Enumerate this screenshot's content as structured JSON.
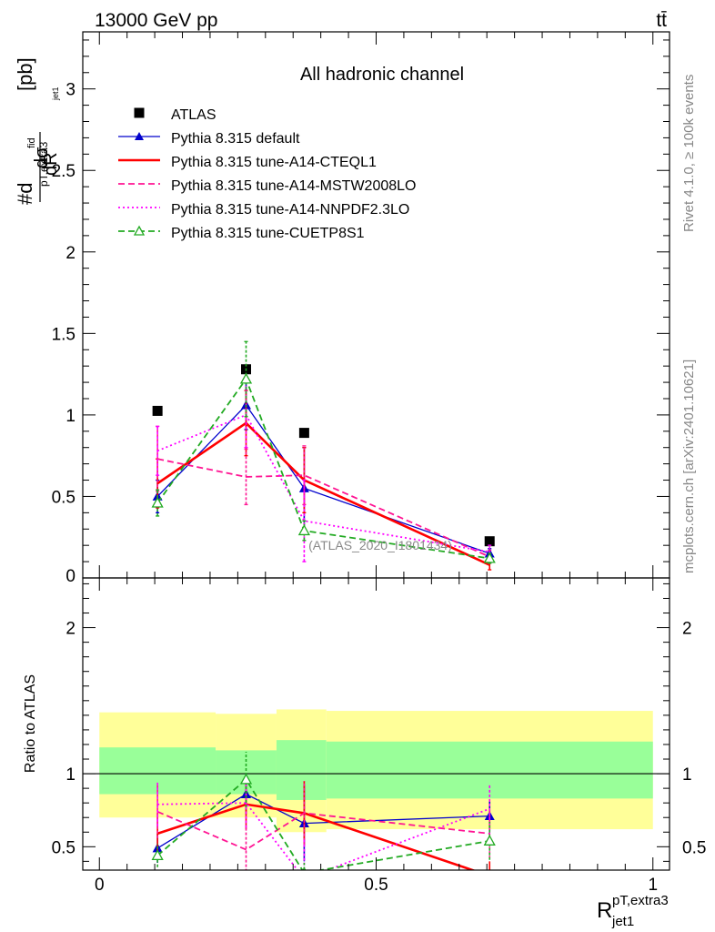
{
  "header": {
    "energy_label": "13000 GeV pp",
    "process_label": "tt̄",
    "rivet_label": "Rivet 4.1.0, ≥ 100k events",
    "mcplots_label": "mcplots.cern.ch [arXiv:2401.10621]"
  },
  "chart_data": [
    {
      "type": "scatter",
      "panel": "main",
      "title": "All hadronic channel",
      "ylabel": "#dσ^fid / dR_jet1^pT,extra3 [pb]",
      "ylim": [
        0,
        3.35
      ],
      "yticks": [
        0.5,
        1,
        1.5,
        2,
        2.5,
        3
      ],
      "ytick_labels": [
        "0.5",
        "1",
        "1.5",
        "2",
        "2.5",
        "3"
      ],
      "zero_label": "0",
      "analysis_label": "(ATLAS_2020_I1801434)",
      "x": [
        0.105,
        0.265,
        0.37,
        0.705
      ],
      "series": [
        {
          "name": "ATLAS",
          "values": [
            1.025,
            1.28,
            0.89,
            0.225
          ],
          "color": "#000000",
          "style": "marker",
          "marker": "square"
        },
        {
          "name": "Pythia 8.315 default",
          "values": [
            0.5,
            1.06,
            0.55,
            0.15
          ],
          "errors": [
            0.1,
            0.15,
            0.25,
            0.03
          ],
          "color": "#0000cc",
          "style": "solid",
          "marker": "triangle"
        },
        {
          "name": "Pythia 8.315 tune-A14-CTEQL1",
          "values": [
            0.58,
            0.95,
            0.6,
            0.08
          ],
          "errors": [
            0.15,
            0.2,
            0.2,
            0.03
          ],
          "color": "#ff0000",
          "style": "solid-thick",
          "marker": "none"
        },
        {
          "name": "Pythia 8.315 tune-A14-MSTW2008LO",
          "values": [
            0.73,
            0.62,
            0.63,
            0.13
          ],
          "errors": [
            0.2,
            0.17,
            0.18,
            0.04
          ],
          "color": "#ff1493",
          "style": "dashed",
          "marker": "none"
        },
        {
          "name": "Pythia 8.315 tune-A14-NNPDF2.3LO",
          "values": [
            0.78,
            1.0,
            0.35,
            0.16
          ],
          "errors": [
            0.15,
            0.2,
            0.25,
            0.04
          ],
          "color": "#ff00ff",
          "style": "dotted",
          "marker": "none"
        },
        {
          "name": "Pythia 8.315 tune-CUETP8S1",
          "values": [
            0.46,
            1.22,
            0.29,
            0.12
          ],
          "errors": [
            0.08,
            0.23,
            0.06,
            0.03
          ],
          "color": "#22aa22",
          "style": "dashed",
          "marker": "open-triangle"
        }
      ]
    },
    {
      "type": "scatter",
      "panel": "ratio",
      "ylabel": "Ratio to ATLAS",
      "xlabel": "R_jet1^pT,extra3",
      "xlim": [
        -0.03,
        1.03
      ],
      "ylim": [
        0.34,
        2.34
      ],
      "xticks": [
        0,
        0.5,
        1
      ],
      "xtick_labels": [
        "0",
        "0.5",
        "1"
      ],
      "yticks": [
        0.5,
        1,
        2
      ],
      "ytick_labels": [
        "0.5",
        "1",
        "2"
      ],
      "band_edges": [
        0,
        0.21,
        0.32,
        0.41,
        1.0
      ],
      "band_outer": [
        [
          0.7,
          1.42
        ],
        [
          0.7,
          1.41
        ],
        [
          0.6,
          1.44
        ],
        [
          0.62,
          1.43
        ]
      ],
      "band_inner": [
        [
          0.86,
          1.18
        ],
        [
          0.86,
          1.16
        ],
        [
          0.82,
          1.23
        ],
        [
          0.83,
          1.22
        ]
      ],
      "series": [
        {
          "name": "Pythia 8.315 default",
          "values": [
            0.49,
            0.86,
            0.66,
            0.71
          ],
          "errors": [
            0.1,
            0.14,
            0.26,
            0.1
          ]
        },
        {
          "name": "Pythia 8.315 tune-A14-CTEQL1",
          "values": [
            0.59,
            0.79,
            0.73,
            0.3
          ],
          "errors": [
            0.14,
            0.17,
            0.22,
            0.1
          ]
        },
        {
          "name": "Pythia 8.315 tune-A14-MSTW2008LO",
          "values": [
            0.74,
            0.48,
            0.73,
            0.59
          ],
          "errors": [
            0.18,
            0.15,
            0.22,
            0.17
          ]
        },
        {
          "name": "Pythia 8.315 tune-A14-NNPDF2.3LO",
          "values": [
            0.79,
            0.8,
            0.28,
            0.76
          ],
          "errors": [
            0.15,
            0.17,
            0.28,
            0.17
          ]
        },
        {
          "name": "Pythia 8.315 tune-CUETP8S1",
          "values": [
            0.44,
            0.96,
            0.32,
            0.54
          ],
          "errors": [
            0.08,
            0.19,
            0.07,
            0.13
          ]
        }
      ]
    }
  ]
}
